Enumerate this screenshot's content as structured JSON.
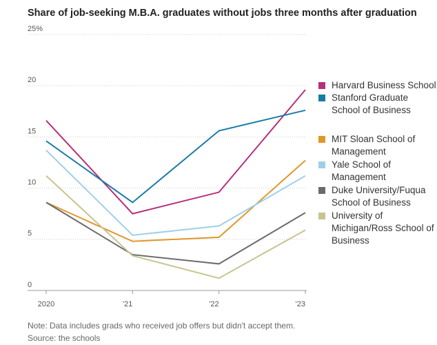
{
  "chart_data": {
    "type": "line",
    "title": "Share of job-seeking M.B.A. graduates without jobs three months after graduation",
    "categories": [
      "2020",
      "'21",
      "'22",
      "'23"
    ],
    "ylim": [
      0,
      25
    ],
    "yticks": [
      0,
      5,
      10,
      15,
      20,
      {
        "value": 25,
        "label": "25%"
      }
    ],
    "grid": true,
    "series": [
      {
        "name": "Harvard Business School",
        "color": "#b5307a",
        "values": [
          16.6,
          7.5,
          9.6,
          19.6
        ]
      },
      {
        "name": "Stanford Graduate School of Business",
        "color": "#1a7aa6",
        "values": [
          14.6,
          8.6,
          15.6,
          17.6
        ]
      },
      {
        "name": "MIT Sloan School of Management",
        "color": "#e0962b",
        "values": [
          8.6,
          4.8,
          5.2,
          12.7
        ]
      },
      {
        "name": "Yale School of Management",
        "color": "#9fcfe8",
        "values": [
          13.7,
          5.4,
          6.3,
          11.2
        ]
      },
      {
        "name": "Duke University/Fuqua School of Business",
        "color": "#6b6b6b",
        "values": [
          8.6,
          3.5,
          2.6,
          7.6
        ]
      },
      {
        "name": "University of Michigan/Ross School of Business",
        "color": "#c8c48e",
        "values": [
          11.2,
          3.4,
          1.2,
          5.9
        ]
      }
    ],
    "note": "Note: Data includes grads who received job offers but didn't accept them.",
    "source": "Source: the schools"
  }
}
